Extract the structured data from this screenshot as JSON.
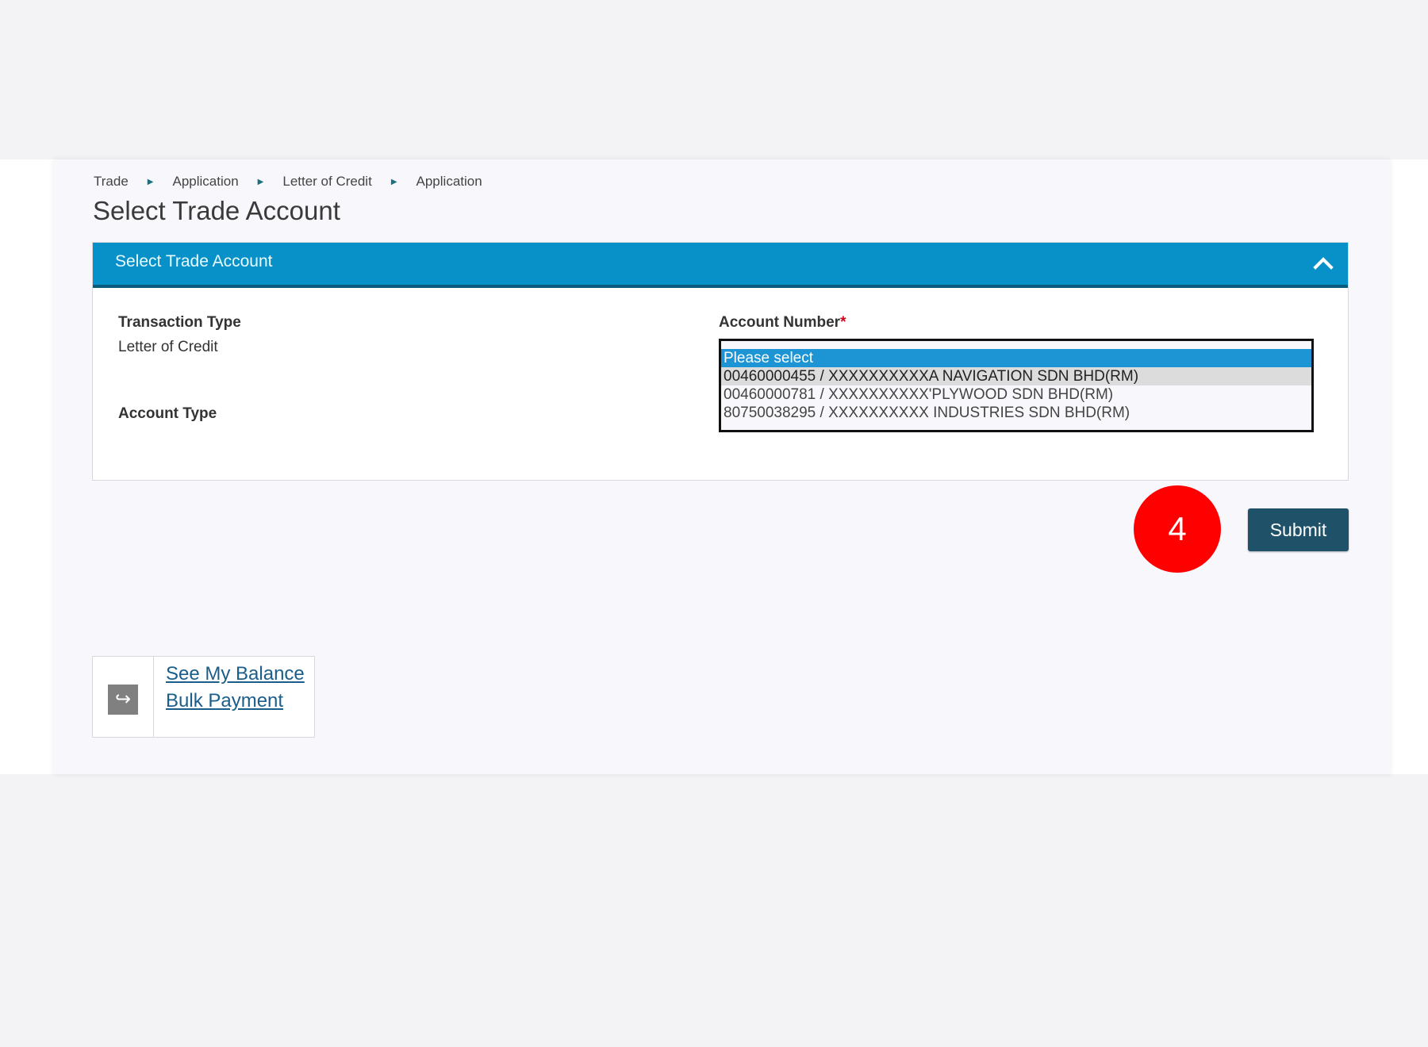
{
  "breadcrumb": [
    "Trade",
    "Application",
    "Letter of Credit",
    "Application"
  ],
  "page_title": "Select Trade Account",
  "panel": {
    "header": "Select Trade Account",
    "collapse_icon": "chevron-up-icon",
    "header_color": "#0891c9",
    "transaction_type_label": "Transaction Type",
    "transaction_type_value": "Letter of Credit",
    "account_type_label": "Account Type",
    "account_number_label": "Account Number",
    "required_mark": "*",
    "account_options": [
      "Please select",
      "00460000455 / XXXXXXXXXXA NAVIGATION SDN BHD(RM)",
      "00460000781 / XXXXXXXXXX'PLYWOOD SDN BHD(RM)",
      "80750038295 / XXXXXXXXXX INDUSTRIES SDN BHD(RM)"
    ],
    "selected_option": "Please select"
  },
  "step_badge": "4",
  "submit_label": "Submit",
  "quick_links": {
    "icon": "share-arrow-icon",
    "items": [
      "See My Balance",
      "Bulk Payment"
    ]
  }
}
